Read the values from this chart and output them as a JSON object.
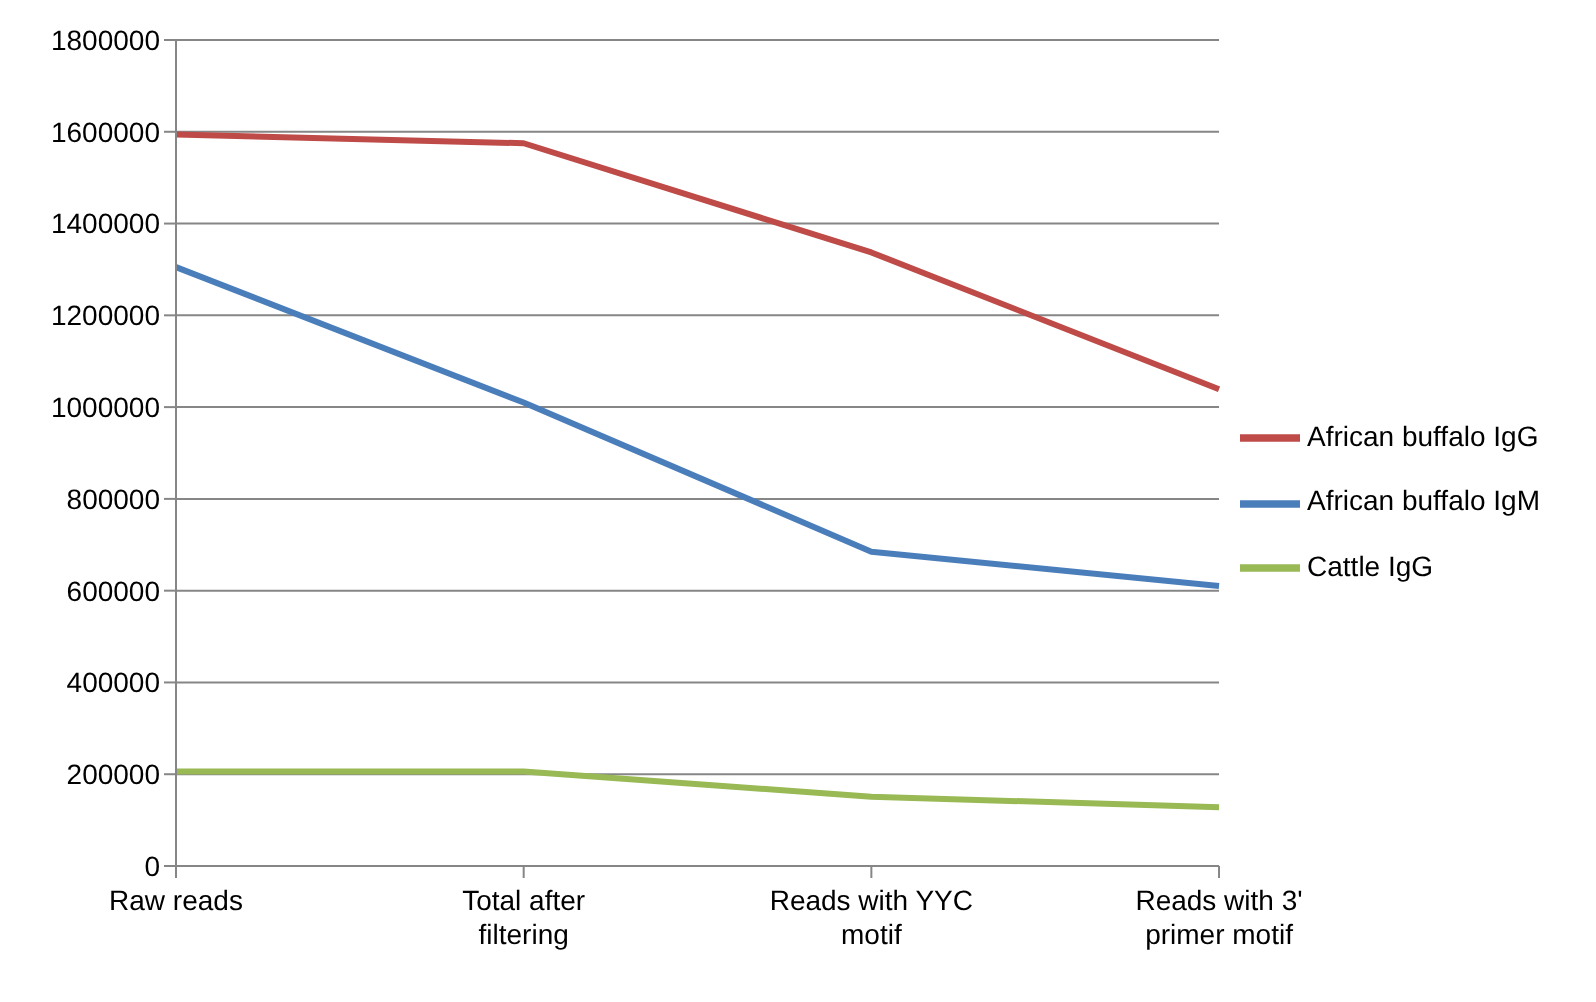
{
  "chart_data": {
    "type": "line",
    "categories": [
      "Raw reads",
      "Total after filtering",
      "Reads with YYC motif",
      "Reads with 3' primer motif"
    ],
    "series": [
      {
        "name": "African buffalo IgM",
        "color": "#4a7ebb",
        "values": [
          1305000,
          1010000,
          685000,
          610000
        ]
      },
      {
        "name": "African buffalo IgG",
        "color": "#be4b48",
        "values": [
          1594000,
          1575000,
          1337000,
          1039000
        ]
      },
      {
        "name": "Cattle IgG",
        "color": "#98b954",
        "values": [
          206000,
          206000,
          151000,
          128000
        ]
      }
    ],
    "ylim": [
      0,
      1800000
    ],
    "yticks": [
      0,
      200000,
      400000,
      600000,
      800000,
      1000000,
      1200000,
      1400000,
      1600000,
      1800000
    ],
    "grid": "y",
    "legend": "right",
    "marker": "none",
    "line_style": "solid"
  }
}
